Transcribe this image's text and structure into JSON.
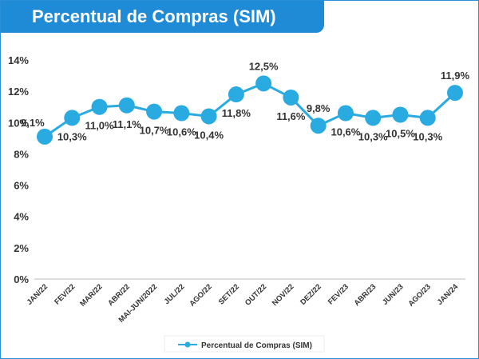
{
  "header": {
    "title": "Percentual de Compras (SIM)"
  },
  "colors": {
    "accent": "#1f8bd6",
    "series": "#29abe2",
    "text": "#333333"
  },
  "chart_data": {
    "type": "line",
    "title": "Percentual de Compras (SIM)",
    "xlabel": "",
    "ylabel": "",
    "ylim": [
      0,
      14
    ],
    "yticks": [
      "0%",
      "2%",
      "4%",
      "6%",
      "8%",
      "10%",
      "12%",
      "14%"
    ],
    "grid": false,
    "legend": "bottom-center",
    "categories": [
      "JAN/22",
      "FEV/22",
      "MAR/22",
      "ABR/22",
      "MAI-JUN/2022",
      "JUL/22",
      "AGO/22",
      "SET/22",
      "OUT/22",
      "NOV/22",
      "DEZ/22",
      "FEV/23",
      "ABR/23",
      "JUN/23",
      "AGO/23",
      "JAN/24"
    ],
    "series": [
      {
        "name": "Percentual de Compras (SIM)",
        "values": [
          9.1,
          10.3,
          11.0,
          11.1,
          10.7,
          10.6,
          10.4,
          11.8,
          12.5,
          11.6,
          9.8,
          10.6,
          10.3,
          10.5,
          10.3,
          11.9
        ],
        "labels": [
          "9,1%",
          "10,3%",
          "11,0%",
          "11,1%",
          "10,7%",
          "10,6%",
          "10,4%",
          "11,8%",
          "12,5%",
          "11,6%",
          "9,8%",
          "10,6%",
          "10,3%",
          "10,5%",
          "10,3%",
          "11,9%"
        ]
      }
    ]
  }
}
